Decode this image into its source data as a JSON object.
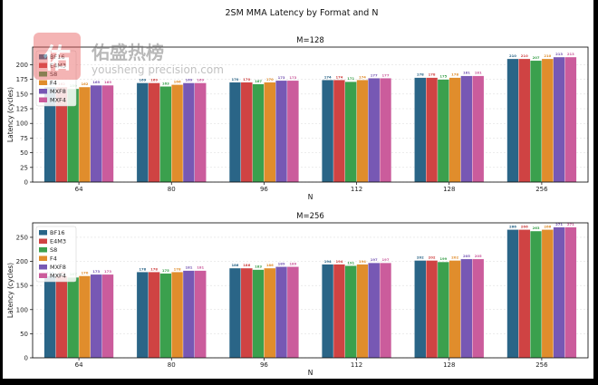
{
  "colors": {
    "BF16": "#2a6587",
    "E4M3": "#cf4343",
    "S8": "#3ba04d",
    "F4": "#e08d2c",
    "MXF8": "#7758b4",
    "MXF4": "#cb5c9c"
  },
  "watermark": {
    "title": "佑盛热榜",
    "url": "yousheng precision.com"
  },
  "chart_data": {
    "type": "bar",
    "title": "2SM MMA Latency by Format and N",
    "subplots": [
      {
        "title": "M=128",
        "xlabel": "N",
        "ylabel": "Latency (cycles)",
        "ylim": [
          0,
          230
        ],
        "yticks": [
          0,
          25,
          50,
          75,
          100,
          125,
          150,
          175,
          200
        ],
        "categories": [
          "64",
          "80",
          "96",
          "112",
          "128",
          "256"
        ],
        "series": [
          {
            "name": "BF16",
            "values": [
              162,
              169,
              170,
              174,
              178,
              210
            ]
          },
          {
            "name": "E4M3",
            "values": [
              162,
              169,
              170,
              174,
              178,
              210
            ]
          },
          {
            "name": "S8",
            "values": [
              159,
              163,
              167,
              171,
              175,
              207
            ]
          },
          {
            "name": "F4",
            "values": [
              162,
              166,
              170,
              174,
              178,
              210
            ]
          },
          {
            "name": "MXF8",
            "values": [
              165,
              169,
              173,
              177,
              181,
              213
            ]
          },
          {
            "name": "MXF4",
            "values": [
              165,
              169,
              173,
              177,
              181,
              213
            ]
          }
        ]
      },
      {
        "title": "M=256",
        "xlabel": "N",
        "ylabel": "Latency (cycles)",
        "ylim": [
          0,
          280
        ],
        "yticks": [
          0,
          50,
          100,
          150,
          200,
          250
        ],
        "categories": [
          "64",
          "80",
          "96",
          "112",
          "128",
          "256"
        ],
        "series": [
          {
            "name": "BF16",
            "values": [
              170,
              178,
              186,
              194,
              202,
              266
            ]
          },
          {
            "name": "E4M3",
            "values": [
              170,
              178,
              186,
              194,
              202,
              266
            ]
          },
          {
            "name": "S8",
            "values": [
              167,
              175,
              183,
              191,
              199,
              263
            ]
          },
          {
            "name": "F4",
            "values": [
              170,
              178,
              186,
              194,
              202,
              266
            ]
          },
          {
            "name": "MXF8",
            "values": [
              173,
              181,
              189,
              197,
              205,
              271
            ]
          },
          {
            "name": "MXF4",
            "values": [
              173,
              181,
              189,
              197,
              205,
              271
            ]
          }
        ]
      }
    ]
  }
}
